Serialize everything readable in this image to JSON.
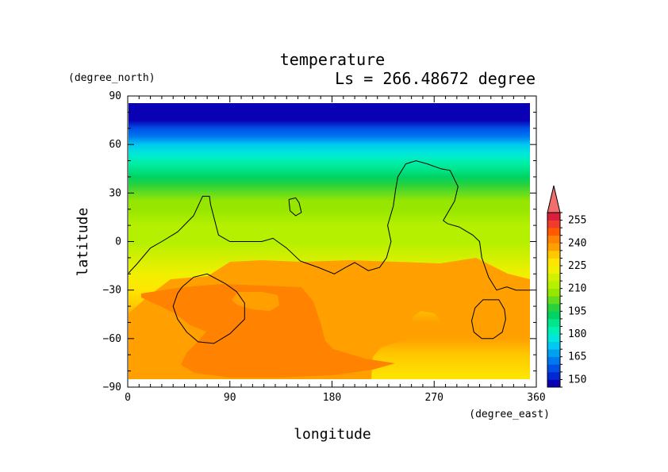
{
  "chart_data": {
    "type": "heatmap",
    "title": "temperature",
    "subtitle": "Ls = 266.48672 degree",
    "xlabel": "longitude",
    "ylabel": "latitude",
    "x_unit": "(degree_east)",
    "y_unit": "(degree_north)",
    "xlim": [
      0,
      360
    ],
    "ylim": [
      -90,
      90
    ],
    "x_ticks": [
      "0",
      "90",
      "180",
      "270",
      "360"
    ],
    "y_ticks": [
      "90",
      "60",
      "30",
      "0",
      "−30",
      "−60",
      "−90"
    ],
    "x_tick_values": [
      0,
      90,
      180,
      270,
      360
    ],
    "y_tick_values": [
      90,
      60,
      30,
      0,
      -30,
      -60,
      -90
    ],
    "colorbar": {
      "labels": [
        "255",
        "240",
        "225",
        "210",
        "195",
        "180",
        "165",
        "150"
      ],
      "label_values": [
        255,
        240,
        225,
        210,
        195,
        180,
        165,
        150
      ],
      "levels": [
        145,
        150,
        155,
        160,
        165,
        170,
        175,
        180,
        185,
        190,
        195,
        200,
        205,
        210,
        215,
        220,
        225,
        230,
        235,
        240,
        245,
        250,
        255,
        260
      ],
      "colors": [
        "#0a00b4",
        "#0028d2",
        "#0050e6",
        "#0078f0",
        "#00a0f0",
        "#00c8f0",
        "#00e6dc",
        "#00f0b4",
        "#00e68c",
        "#00d264",
        "#28d23c",
        "#64dc1e",
        "#96e600",
        "#b4f000",
        "#d2f000",
        "#f0f000",
        "#ffe600",
        "#ffc800",
        "#ffa000",
        "#ff8200",
        "#ff5a00",
        "#f03c28",
        "#dc1e3c"
      ],
      "overflow_color": "#f06e6e"
    },
    "temperature_by_latitude": {
      "lat": [
        85,
        75,
        70,
        65,
        60,
        55,
        50,
        45,
        40,
        35,
        30,
        25,
        20,
        10,
        0,
        -10,
        -20,
        -30,
        -40,
        -50,
        -60,
        -70,
        -85
      ],
      "values": [
        147,
        149,
        156,
        163,
        170,
        176,
        181,
        186,
        191,
        196,
        201,
        205,
        208,
        211,
        214,
        219,
        224,
        229,
        233,
        236,
        236,
        232,
        228
      ]
    },
    "contour_level": 215,
    "contours": [
      {
        "lon": [
          0,
          8,
          20,
          30,
          44,
          58,
          66,
          72,
          73,
          80,
          90,
          104,
          118,
          128,
          140,
          152,
          168,
          182,
          192,
          200,
          212,
          222,
          228,
          232,
          229,
          234,
          236,
          238,
          245,
          254,
          264,
          276,
          284,
          291,
          288,
          278,
          282,
          292,
          304,
          310,
          312,
          318,
          325,
          334,
          342,
          356,
          360
        ],
        "lat": [
          -20,
          -14,
          -4,
          0,
          6,
          16,
          28,
          28,
          23,
          4,
          0,
          0,
          0,
          2,
          -4,
          -12,
          -16,
          -20,
          -16,
          -13,
          -18,
          -16,
          -10,
          0,
          10,
          22,
          32,
          40,
          48,
          50,
          48,
          45,
          44,
          34,
          25,
          13,
          11,
          9,
          4,
          0,
          -10,
          -22,
          -30,
          -28,
          -30,
          -30,
          -20
        ]
      },
      {
        "lon": [
          142,
          148,
          151,
          153,
          148,
          143,
          142
        ],
        "lat": [
          26,
          27,
          24,
          18,
          16,
          19,
          26
        ]
      },
      {
        "lon": [
          48,
          58,
          70,
          86,
          96,
          103,
          103,
          90,
          76,
          62,
          52,
          44,
          40,
          44,
          48
        ],
        "lat": [
          -28,
          -22,
          -20,
          -26,
          -31,
          -38,
          -48,
          -57,
          -63,
          -62,
          -56,
          -48,
          -40,
          -32,
          -28
        ]
      },
      {
        "lon": [
          320,
          327,
          332,
          333,
          330,
          322,
          312,
          305,
          303,
          306,
          313,
          320
        ],
        "lat": [
          -36,
          -36,
          -42,
          -48,
          -56,
          -60,
          -60,
          -56,
          -49,
          -41,
          -36,
          -36
        ]
      }
    ]
  }
}
